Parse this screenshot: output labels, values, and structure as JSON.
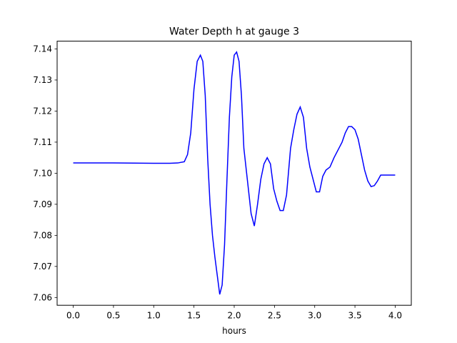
{
  "chart_data": {
    "type": "line",
    "title": "Water Depth h at gauge 3",
    "xlabel": "hours",
    "ylabel": "",
    "xlim": [
      -0.2,
      4.2
    ],
    "ylim": [
      7.0575,
      7.1425
    ],
    "xticks": [
      0.0,
      0.5,
      1.0,
      1.5,
      2.0,
      2.5,
      3.0,
      3.5,
      4.0
    ],
    "xtick_labels": [
      "0.0",
      "0.5",
      "1.0",
      "1.5",
      "2.0",
      "2.5",
      "3.0",
      "3.5",
      "4.0"
    ],
    "yticks": [
      7.06,
      7.07,
      7.08,
      7.09,
      7.1,
      7.11,
      7.12,
      7.13,
      7.14
    ],
    "ytick_labels": [
      "7.06",
      "7.07",
      "7.08",
      "7.09",
      "7.10",
      "7.11",
      "7.12",
      "7.13",
      "7.14"
    ],
    "grid": false,
    "series": [
      {
        "color": "#0000ff",
        "x": [
          0.0,
          0.5,
          1.0,
          1.2,
          1.3,
          1.38,
          1.42,
          1.46,
          1.5,
          1.54,
          1.58,
          1.61,
          1.64,
          1.67,
          1.7,
          1.73,
          1.76,
          1.79,
          1.82,
          1.85,
          1.88,
          1.91,
          1.94,
          1.97,
          2.0,
          2.03,
          2.06,
          2.09,
          2.12,
          2.15,
          2.18,
          2.21,
          2.25,
          2.29,
          2.33,
          2.37,
          2.41,
          2.45,
          2.49,
          2.53,
          2.57,
          2.61,
          2.65,
          2.7,
          2.74,
          2.78,
          2.82,
          2.86,
          2.9,
          2.94,
          2.98,
          3.02,
          3.06,
          3.1,
          3.14,
          3.19,
          3.24,
          3.29,
          3.34,
          3.38,
          3.42,
          3.46,
          3.5,
          3.54,
          3.58,
          3.62,
          3.66,
          3.7,
          3.74,
          3.78,
          3.82,
          3.86,
          3.9,
          3.94,
          3.97,
          4.0
        ],
        "y": [
          7.1033,
          7.1033,
          7.1032,
          7.1032,
          7.1033,
          7.1037,
          7.106,
          7.113,
          7.127,
          7.136,
          7.138,
          7.136,
          7.125,
          7.105,
          7.09,
          7.08,
          7.073,
          7.067,
          7.061,
          7.064,
          7.077,
          7.098,
          7.118,
          7.131,
          7.138,
          7.139,
          7.136,
          7.125,
          7.108,
          7.101,
          7.094,
          7.087,
          7.083,
          7.09,
          7.098,
          7.103,
          7.105,
          7.103,
          7.095,
          7.091,
          7.088,
          7.088,
          7.093,
          7.108,
          7.114,
          7.119,
          7.1213,
          7.118,
          7.108,
          7.102,
          7.098,
          7.094,
          7.094,
          7.099,
          7.101,
          7.102,
          7.105,
          7.1075,
          7.11,
          7.113,
          7.115,
          7.115,
          7.114,
          7.111,
          7.106,
          7.101,
          7.0975,
          7.0957,
          7.096,
          7.0975,
          7.0994,
          7.0994,
          7.0994,
          7.0994,
          7.0994,
          7.0994
        ]
      }
    ]
  }
}
